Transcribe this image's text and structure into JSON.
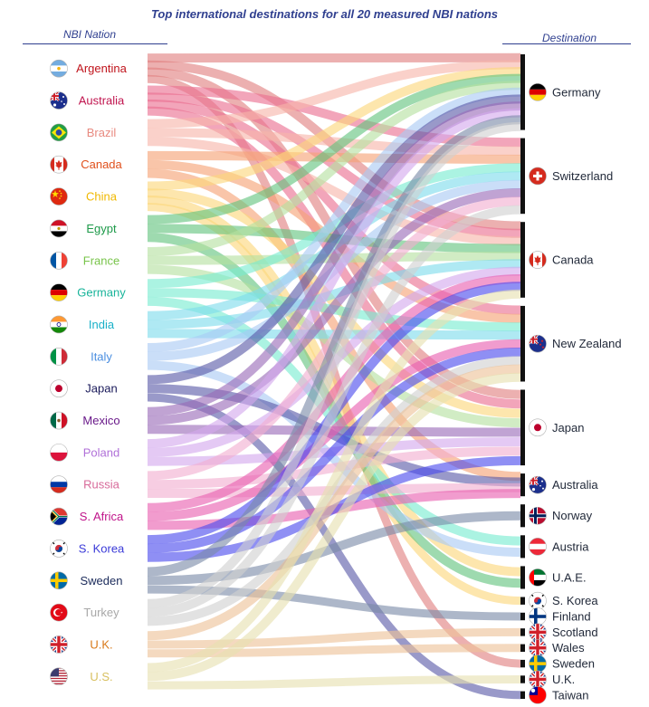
{
  "chart_data": {
    "type": "sankey",
    "title": "Top international destinations for all 20 measured NBI nations",
    "left_header": "NBI Nation",
    "right_header": "Destination",
    "sources": [
      {
        "name": "Argentina",
        "color": "#c0141c",
        "flow_color": "#e08080",
        "flag": "argentina"
      },
      {
        "name": "Australia",
        "color": "#c0144e",
        "flow_color": "#ea6e90",
        "flag": "australia"
      },
      {
        "name": "Brazil",
        "color": "#e88a80",
        "flow_color": "#f7b4aa",
        "flag": "brazil"
      },
      {
        "name": "Canada",
        "color": "#e0501c",
        "flow_color": "#f6a274",
        "flag": "canada"
      },
      {
        "name": "China",
        "color": "#f0b800",
        "flow_color": "#fcd77a",
        "flag": "china"
      },
      {
        "name": "Egypt",
        "color": "#1e9a4a",
        "flow_color": "#62c47e",
        "flag": "egypt"
      },
      {
        "name": "France",
        "color": "#78c44a",
        "flow_color": "#b4e0a0",
        "flag": "france"
      },
      {
        "name": "Germany",
        "color": "#18b49a",
        "flow_color": "#78ecd0",
        "flag": "germany"
      },
      {
        "name": "India",
        "color": "#18b0c8",
        "flow_color": "#7edcec",
        "flag": "india"
      },
      {
        "name": "Italy",
        "color": "#4a8ee0",
        "flow_color": "#aacaf4",
        "flag": "italy"
      },
      {
        "name": "Japan",
        "color": "#1a1a5a",
        "flow_color": "#5a5aa8",
        "flag": "japan"
      },
      {
        "name": "Mexico",
        "color": "#6a1a8a",
        "flow_color": "#9a6ab8",
        "flag": "mexico"
      },
      {
        "name": "Poland",
        "color": "#b070d8",
        "flow_color": "#d4a8ee",
        "flag": "poland"
      },
      {
        "name": "Russia",
        "color": "#d86a9a",
        "flow_color": "#f2aed0",
        "flag": "russia"
      },
      {
        "name": "S. Africa",
        "color": "#c0148a",
        "flow_color": "#e860b0",
        "flag": "safrica"
      },
      {
        "name": "S. Korea",
        "color": "#3a3ad8",
        "flow_color": "#4a4aee",
        "flag": "skorea"
      },
      {
        "name": "Sweden",
        "color": "#1a2a5a",
        "flow_color": "#7a8aa8",
        "flag": "sweden"
      },
      {
        "name": "Turkey",
        "color": "#a8a8a8",
        "flow_color": "#d0d0d0",
        "flag": "turkey"
      },
      {
        "name": "U.K.",
        "color": "#d87818",
        "flow_color": "#eec298",
        "flag": "uk"
      },
      {
        "name": "U.S.",
        "color": "#d8c060",
        "flow_color": "#e6e0b0",
        "flag": "us"
      }
    ],
    "destinations": [
      {
        "name": "Germany",
        "weight": 10,
        "flag": "germany"
      },
      {
        "name": "Switzerland",
        "weight": 10,
        "flag": "switzerland"
      },
      {
        "name": "Canada",
        "weight": 10,
        "flag": "canada"
      },
      {
        "name": "New Zealand",
        "weight": 10,
        "flag": "nz"
      },
      {
        "name": "Japan",
        "weight": 10,
        "flag": "japan"
      },
      {
        "name": "Australia",
        "weight": 3,
        "flag": "australia"
      },
      {
        "name": "Norway",
        "weight": 3,
        "flag": "norway"
      },
      {
        "name": "Austria",
        "weight": 3,
        "flag": "austria"
      },
      {
        "name": "U.A.E.",
        "weight": 3,
        "flag": "uae"
      },
      {
        "name": "S. Korea",
        "weight": 1,
        "flag": "skorea"
      },
      {
        "name": "Finland",
        "weight": 1,
        "flag": "finland"
      },
      {
        "name": "Scotland",
        "weight": 1,
        "flag": "uk"
      },
      {
        "name": "Wales",
        "weight": 1,
        "flag": "uk"
      },
      {
        "name": "Sweden",
        "weight": 1,
        "flag": "sweden"
      },
      {
        "name": "U.K.",
        "weight": 1,
        "flag": "uk"
      },
      {
        "name": "Taiwan",
        "weight": 1,
        "flag": "taiwan"
      }
    ],
    "flows": [
      {
        "source": "Argentina",
        "target": "Germany",
        "value": 1
      },
      {
        "source": "Argentina",
        "target": "Canada",
        "value": 1
      },
      {
        "source": "Argentina",
        "target": "Japan",
        "value": 1
      },
      {
        "source": "Argentina",
        "target": "Sweden",
        "value": 1
      },
      {
        "source": "Australia",
        "target": "Canada",
        "value": 1
      },
      {
        "source": "Australia",
        "target": "New Zealand",
        "value": 1
      },
      {
        "source": "Australia",
        "target": "Japan",
        "value": 1
      },
      {
        "source": "Australia",
        "target": "Switzerland",
        "value": 1
      },
      {
        "source": "Brazil",
        "target": "Germany",
        "value": 1
      },
      {
        "source": "Brazil",
        "target": "Switzerland",
        "value": 1
      },
      {
        "source": "Brazil",
        "target": "Canada",
        "value": 1
      },
      {
        "source": "Canada",
        "target": "Switzerland",
        "value": 1
      },
      {
        "source": "Canada",
        "target": "New Zealand",
        "value": 1
      },
      {
        "source": "Canada",
        "target": "Australia",
        "value": 1
      },
      {
        "source": "China",
        "target": "Germany",
        "value": 1
      },
      {
        "source": "China",
        "target": "Japan",
        "value": 1
      },
      {
        "source": "China",
        "target": "U.A.E.",
        "value": 1
      },
      {
        "source": "China",
        "target": "S. Korea",
        "value": 1
      },
      {
        "source": "Egypt",
        "target": "Canada",
        "value": 1
      },
      {
        "source": "Egypt",
        "target": "Germany",
        "value": 1
      },
      {
        "source": "Egypt",
        "target": "U.A.E.",
        "value": 1
      },
      {
        "source": "France",
        "target": "Germany",
        "value": 1
      },
      {
        "source": "France",
        "target": "Canada",
        "value": 1
      },
      {
        "source": "France",
        "target": "Japan",
        "value": 1
      },
      {
        "source": "Germany",
        "target": "Switzerland",
        "value": 1
      },
      {
        "source": "Germany",
        "target": "New Zealand",
        "value": 1
      },
      {
        "source": "Germany",
        "target": "Austria",
        "value": 1
      },
      {
        "source": "India",
        "target": "New Zealand",
        "value": 1
      },
      {
        "source": "India",
        "target": "Switzerland",
        "value": 1
      },
      {
        "source": "India",
        "target": "Canada",
        "value": 1
      },
      {
        "source": "Italy",
        "target": "Switzerland",
        "value": 1
      },
      {
        "source": "Italy",
        "target": "Germany",
        "value": 1
      },
      {
        "source": "Italy",
        "target": "Austria",
        "value": 1
      },
      {
        "source": "Japan",
        "target": "Germany",
        "value": 1
      },
      {
        "source": "Japan",
        "target": "Australia",
        "value": 1
      },
      {
        "source": "Japan",
        "target": "Taiwan",
        "value": 1
      },
      {
        "source": "Mexico",
        "target": "Germany",
        "value": 1
      },
      {
        "source": "Mexico",
        "target": "Switzerland",
        "value": 1
      },
      {
        "source": "Mexico",
        "target": "Japan",
        "value": 1
      },
      {
        "source": "Poland",
        "target": "Germany",
        "value": 1
      },
      {
        "source": "Poland",
        "target": "Canada",
        "value": 1
      },
      {
        "source": "Poland",
        "target": "Japan",
        "value": 1
      },
      {
        "source": "Russia",
        "target": "Switzerland",
        "value": 1
      },
      {
        "source": "Russia",
        "target": "Japan",
        "value": 1
      },
      {
        "source": "Russia",
        "target": "Australia",
        "value": 1
      },
      {
        "source": "S. Africa",
        "target": "New Zealand",
        "value": 1
      },
      {
        "source": "S. Africa",
        "target": "Canada",
        "value": 1
      },
      {
        "source": "S. Africa",
        "target": "Australia",
        "value": 1
      },
      {
        "source": "S. Korea",
        "target": "Canada",
        "value": 1
      },
      {
        "source": "S. Korea",
        "target": "New Zealand",
        "value": 1
      },
      {
        "source": "S. Korea",
        "target": "Japan",
        "value": 1
      },
      {
        "source": "Sweden",
        "target": "Germany",
        "value": 1
      },
      {
        "source": "Sweden",
        "target": "Norway",
        "value": 1
      },
      {
        "source": "Sweden",
        "target": "Finland",
        "value": 1
      },
      {
        "source": "Turkey",
        "target": "Germany",
        "value": 1
      },
      {
        "source": "Turkey",
        "target": "Switzerland",
        "value": 1
      },
      {
        "source": "Turkey",
        "target": "New Zealand",
        "value": 1
      },
      {
        "source": "U.K.",
        "target": "New Zealand",
        "value": 1
      },
      {
        "source": "U.K.",
        "target": "Scotland",
        "value": 1
      },
      {
        "source": "U.K.",
        "target": "Wales",
        "value": 1
      },
      {
        "source": "U.S.",
        "target": "Canada",
        "value": 1
      },
      {
        "source": "U.S.",
        "target": "New Zealand",
        "value": 1
      },
      {
        "source": "U.S.",
        "target": "U.K.",
        "value": 1
      }
    ]
  }
}
